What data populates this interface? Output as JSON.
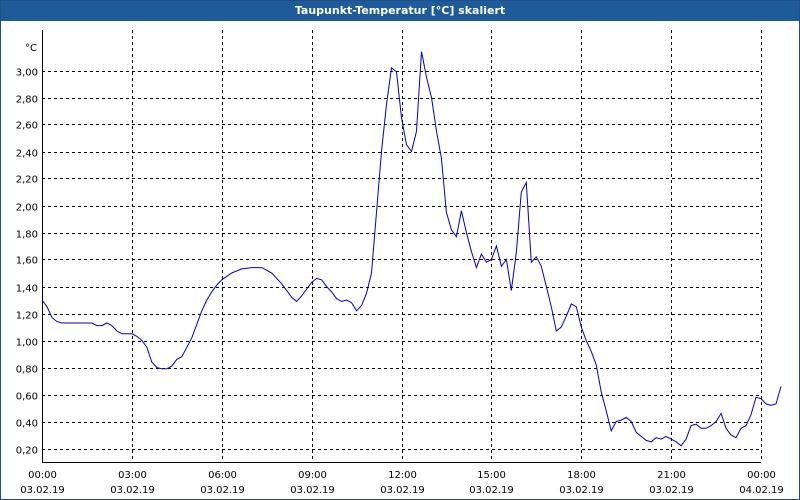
{
  "window": {
    "title": "Taupunkt-Temperatur [°C] skaliert"
  },
  "colors": {
    "titlebar": "#1f5b99",
    "line": "#0000cc",
    "grid": "#000000"
  },
  "chart_data": {
    "type": "line",
    "title": "Taupunkt-Temperatur [°C] skaliert",
    "ylabel": "°C",
    "xlabel": "",
    "grid": true,
    "xlim": [
      "2019-02-03 00:00",
      "2019-02-04 00:00"
    ],
    "ylim": [
      0.1,
      3.3
    ],
    "yticks": [
      "0,20",
      "0,40",
      "0,60",
      "0,80",
      "1,00",
      "1,20",
      "1,40",
      "1,60",
      "1,80",
      "2,00",
      "2,20",
      "2,40",
      "2,60",
      "2,80",
      "3,00"
    ],
    "xticks": [
      {
        "time": "00:00",
        "date": "03.02.19"
      },
      {
        "time": "03:00",
        "date": "03.02.19"
      },
      {
        "time": "06:00",
        "date": "03.02.19"
      },
      {
        "time": "09:00",
        "date": "03.02.19"
      },
      {
        "time": "12:00",
        "date": "03.02.19"
      },
      {
        "time": "15:00",
        "date": "03.02.19"
      },
      {
        "time": "18:00",
        "date": "03.02.19"
      },
      {
        "time": "21:00",
        "date": "03.02.19"
      },
      {
        "time": "00:00",
        "date": "04.02.19"
      }
    ],
    "series": [
      {
        "points": [
          [
            "00:00",
            1.3
          ],
          [
            "00:10",
            1.25
          ],
          [
            "00:20",
            1.17
          ],
          [
            "00:30",
            1.14
          ],
          [
            "00:40",
            1.13
          ],
          [
            "01:00",
            1.13
          ],
          [
            "01:20",
            1.13
          ],
          [
            "01:40",
            1.13
          ],
          [
            "01:50",
            1.11
          ],
          [
            "02:00",
            1.11
          ],
          [
            "02:10",
            1.13
          ],
          [
            "02:20",
            1.11
          ],
          [
            "02:30",
            1.07
          ],
          [
            "02:40",
            1.05
          ],
          [
            "03:00",
            1.05
          ],
          [
            "03:10",
            1.03
          ],
          [
            "03:20",
            1.0
          ],
          [
            "03:30",
            0.95
          ],
          [
            "03:40",
            0.84
          ],
          [
            "03:50",
            0.8
          ],
          [
            "04:00",
            0.79
          ],
          [
            "04:10",
            0.79
          ],
          [
            "04:20",
            0.81
          ],
          [
            "04:30",
            0.86
          ],
          [
            "04:40",
            0.88
          ],
          [
            "04:50",
            0.95
          ],
          [
            "05:00",
            1.02
          ],
          [
            "05:10",
            1.12
          ],
          [
            "05:20",
            1.22
          ],
          [
            "05:30",
            1.3
          ],
          [
            "05:40",
            1.36
          ],
          [
            "05:50",
            1.41
          ],
          [
            "06:00",
            1.45
          ],
          [
            "06:20",
            1.5
          ],
          [
            "06:40",
            1.53
          ],
          [
            "07:00",
            1.54
          ],
          [
            "07:20",
            1.54
          ],
          [
            "07:40",
            1.5
          ],
          [
            "08:00",
            1.42
          ],
          [
            "08:20",
            1.32
          ],
          [
            "08:30",
            1.29
          ],
          [
            "08:40",
            1.33
          ],
          [
            "08:50",
            1.38
          ],
          [
            "09:00",
            1.43
          ],
          [
            "09:10",
            1.46
          ],
          [
            "09:20",
            1.45
          ],
          [
            "09:30",
            1.4
          ],
          [
            "09:40",
            1.36
          ],
          [
            "09:50",
            1.31
          ],
          [
            "10:00",
            1.29
          ],
          [
            "10:10",
            1.3
          ],
          [
            "10:20",
            1.28
          ],
          [
            "10:30",
            1.22
          ],
          [
            "10:40",
            1.26
          ],
          [
            "10:50",
            1.35
          ],
          [
            "11:00",
            1.5
          ],
          [
            "11:10",
            1.95
          ],
          [
            "11:20",
            2.4
          ],
          [
            "11:30",
            2.75
          ],
          [
            "11:40",
            3.02
          ],
          [
            "11:50",
            2.99
          ],
          [
            "12:00",
            2.65
          ],
          [
            "12:10",
            2.45
          ],
          [
            "12:20",
            2.4
          ],
          [
            "12:30",
            2.55
          ],
          [
            "12:40",
            3.14
          ],
          [
            "12:50",
            2.95
          ],
          [
            "13:00",
            2.8
          ],
          [
            "13:10",
            2.55
          ],
          [
            "13:20",
            2.35
          ],
          [
            "13:30",
            1.95
          ],
          [
            "13:40",
            1.82
          ],
          [
            "13:50",
            1.77
          ],
          [
            "14:00",
            1.96
          ],
          [
            "14:10",
            1.8
          ],
          [
            "14:20",
            1.66
          ],
          [
            "14:30",
            1.54
          ],
          [
            "14:40",
            1.64
          ],
          [
            "14:50",
            1.58
          ],
          [
            "15:00",
            1.6
          ],
          [
            "15:10",
            1.7
          ],
          [
            "15:20",
            1.55
          ],
          [
            "15:30",
            1.6
          ],
          [
            "15:40",
            1.37
          ],
          [
            "15:50",
            1.65
          ],
          [
            "16:00",
            2.1
          ],
          [
            "16:10",
            2.17
          ],
          [
            "16:20",
            1.58
          ],
          [
            "16:30",
            1.62
          ],
          [
            "16:40",
            1.55
          ],
          [
            "16:50",
            1.4
          ],
          [
            "17:00",
            1.25
          ],
          [
            "17:10",
            1.07
          ],
          [
            "17:20",
            1.1
          ],
          [
            "17:30",
            1.18
          ],
          [
            "17:40",
            1.27
          ],
          [
            "17:50",
            1.25
          ],
          [
            "18:00",
            1.1
          ],
          [
            "18:10",
            1.0
          ],
          [
            "18:20",
            0.92
          ],
          [
            "18:30",
            0.82
          ],
          [
            "18:40",
            0.62
          ],
          [
            "18:50",
            0.48
          ],
          [
            "19:00",
            0.33
          ],
          [
            "19:10",
            0.4
          ],
          [
            "19:20",
            0.41
          ],
          [
            "19:30",
            0.43
          ],
          [
            "19:40",
            0.4
          ],
          [
            "19:50",
            0.32
          ],
          [
            "20:00",
            0.29
          ],
          [
            "20:10",
            0.26
          ],
          [
            "20:20",
            0.25
          ],
          [
            "20:30",
            0.28
          ],
          [
            "20:40",
            0.27
          ],
          [
            "20:50",
            0.29
          ],
          [
            "21:00",
            0.27
          ],
          [
            "21:10",
            0.25
          ],
          [
            "21:20",
            0.22
          ],
          [
            "21:30",
            0.27
          ],
          [
            "21:40",
            0.37
          ],
          [
            "21:50",
            0.38
          ],
          [
            "22:00",
            0.35
          ],
          [
            "22:10",
            0.35
          ],
          [
            "22:20",
            0.37
          ],
          [
            "22:30",
            0.4
          ],
          [
            "22:40",
            0.46
          ],
          [
            "22:50",
            0.35
          ],
          [
            "23:00",
            0.3
          ],
          [
            "23:10",
            0.28
          ],
          [
            "23:20",
            0.35
          ],
          [
            "23:30",
            0.37
          ],
          [
            "23:40",
            0.45
          ],
          [
            "23:50",
            0.58
          ],
          [
            "24:00",
            0.57
          ],
          [
            "24:10",
            0.53
          ],
          [
            "24:20",
            0.52
          ],
          [
            "24:30",
            0.53
          ],
          [
            "24:40",
            0.66
          ]
        ]
      }
    ]
  }
}
